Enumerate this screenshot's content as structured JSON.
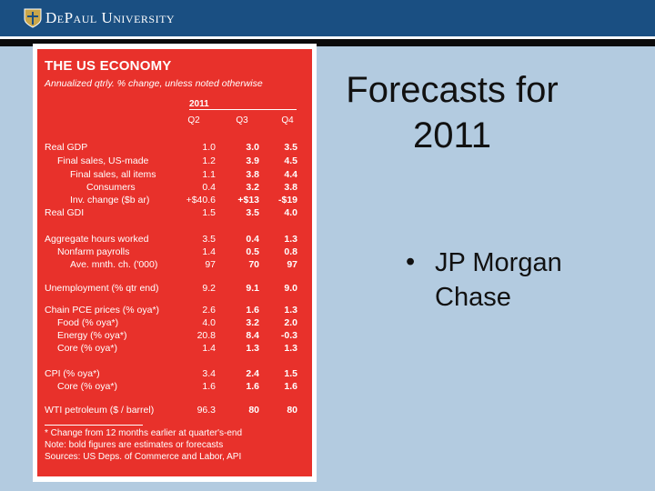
{
  "header": {
    "university": "DePaul University",
    "logo_icon": "depaul-shield-icon"
  },
  "slide": {
    "title_line1": "Forecasts for",
    "title_line2": "2011",
    "bullet": "JP Morgan Chase",
    "bullet_symbol": "•"
  },
  "table": {
    "title": "THE US ECONOMY",
    "subtitle": "Annualized qtrly. % change, unless noted otherwise",
    "year": "2011",
    "quarters": [
      "Q2",
      "Q3",
      "Q4"
    ],
    "rows": [
      {
        "label": "Real GDP",
        "indent": 0,
        "values": [
          "1.0",
          "3.0",
          "3.5"
        ]
      },
      {
        "label": "Final sales, US-made",
        "indent": 1,
        "values": [
          "1.2",
          "3.9",
          "4.5"
        ]
      },
      {
        "label": "Final sales, all items",
        "indent": 2,
        "values": [
          "1.1",
          "3.8",
          "4.4"
        ]
      },
      {
        "label": "Consumers",
        "indent": 3,
        "values": [
          "0.4",
          "3.2",
          "3.8"
        ]
      },
      {
        "label": "Inv. change ($b ar)",
        "indent": 2,
        "values": [
          "+$40.6",
          "+$13",
          "-$19"
        ]
      },
      {
        "label": "Real GDI",
        "indent": 0,
        "values": [
          "1.5",
          "3.5",
          "4.0"
        ]
      },
      {
        "label": "Aggregate hours worked",
        "indent": 0,
        "values": [
          "3.5",
          "0.4",
          "1.3"
        ]
      },
      {
        "label": "Nonfarm payrolls",
        "indent": 1,
        "values": [
          "1.4",
          "0.5",
          "0.8"
        ]
      },
      {
        "label": "Ave. mnth. ch. ('000)",
        "indent": 2,
        "values": [
          "97",
          "70",
          "97"
        ]
      },
      {
        "label": "Unemployment (% qtr end)",
        "indent": 0,
        "values": [
          "9.2",
          "9.1",
          "9.0"
        ]
      },
      {
        "label": "Chain PCE prices (% oya*)",
        "indent": 0,
        "values": [
          "2.6",
          "1.6",
          "1.3"
        ]
      },
      {
        "label": "Food (% oya*)",
        "indent": 1,
        "values": [
          "4.0",
          "3.2",
          "2.0"
        ]
      },
      {
        "label": "Energy (% oya*)",
        "indent": 1,
        "values": [
          "20.8",
          "8.4",
          "-0.3"
        ]
      },
      {
        "label": "Core (% oya*)",
        "indent": 1,
        "values": [
          "1.4",
          "1.3",
          "1.3"
        ]
      },
      {
        "label": "CPI (% oya*)",
        "indent": 0,
        "values": [
          "3.4",
          "2.4",
          "1.5"
        ]
      },
      {
        "label": "Core (% oya*)",
        "indent": 1,
        "values": [
          "1.6",
          "1.6",
          "1.6"
        ]
      },
      {
        "label": "WTI petroleum ($ / barrel)",
        "indent": 0,
        "values": [
          "96.3",
          "80",
          "80"
        ]
      }
    ],
    "footnotes": [
      "* Change from 12 months earlier at quarter's-end",
      "Note: bold figures are estimates or forecasts",
      "Sources: US Deps. of Commerce and Labor, API"
    ]
  }
}
